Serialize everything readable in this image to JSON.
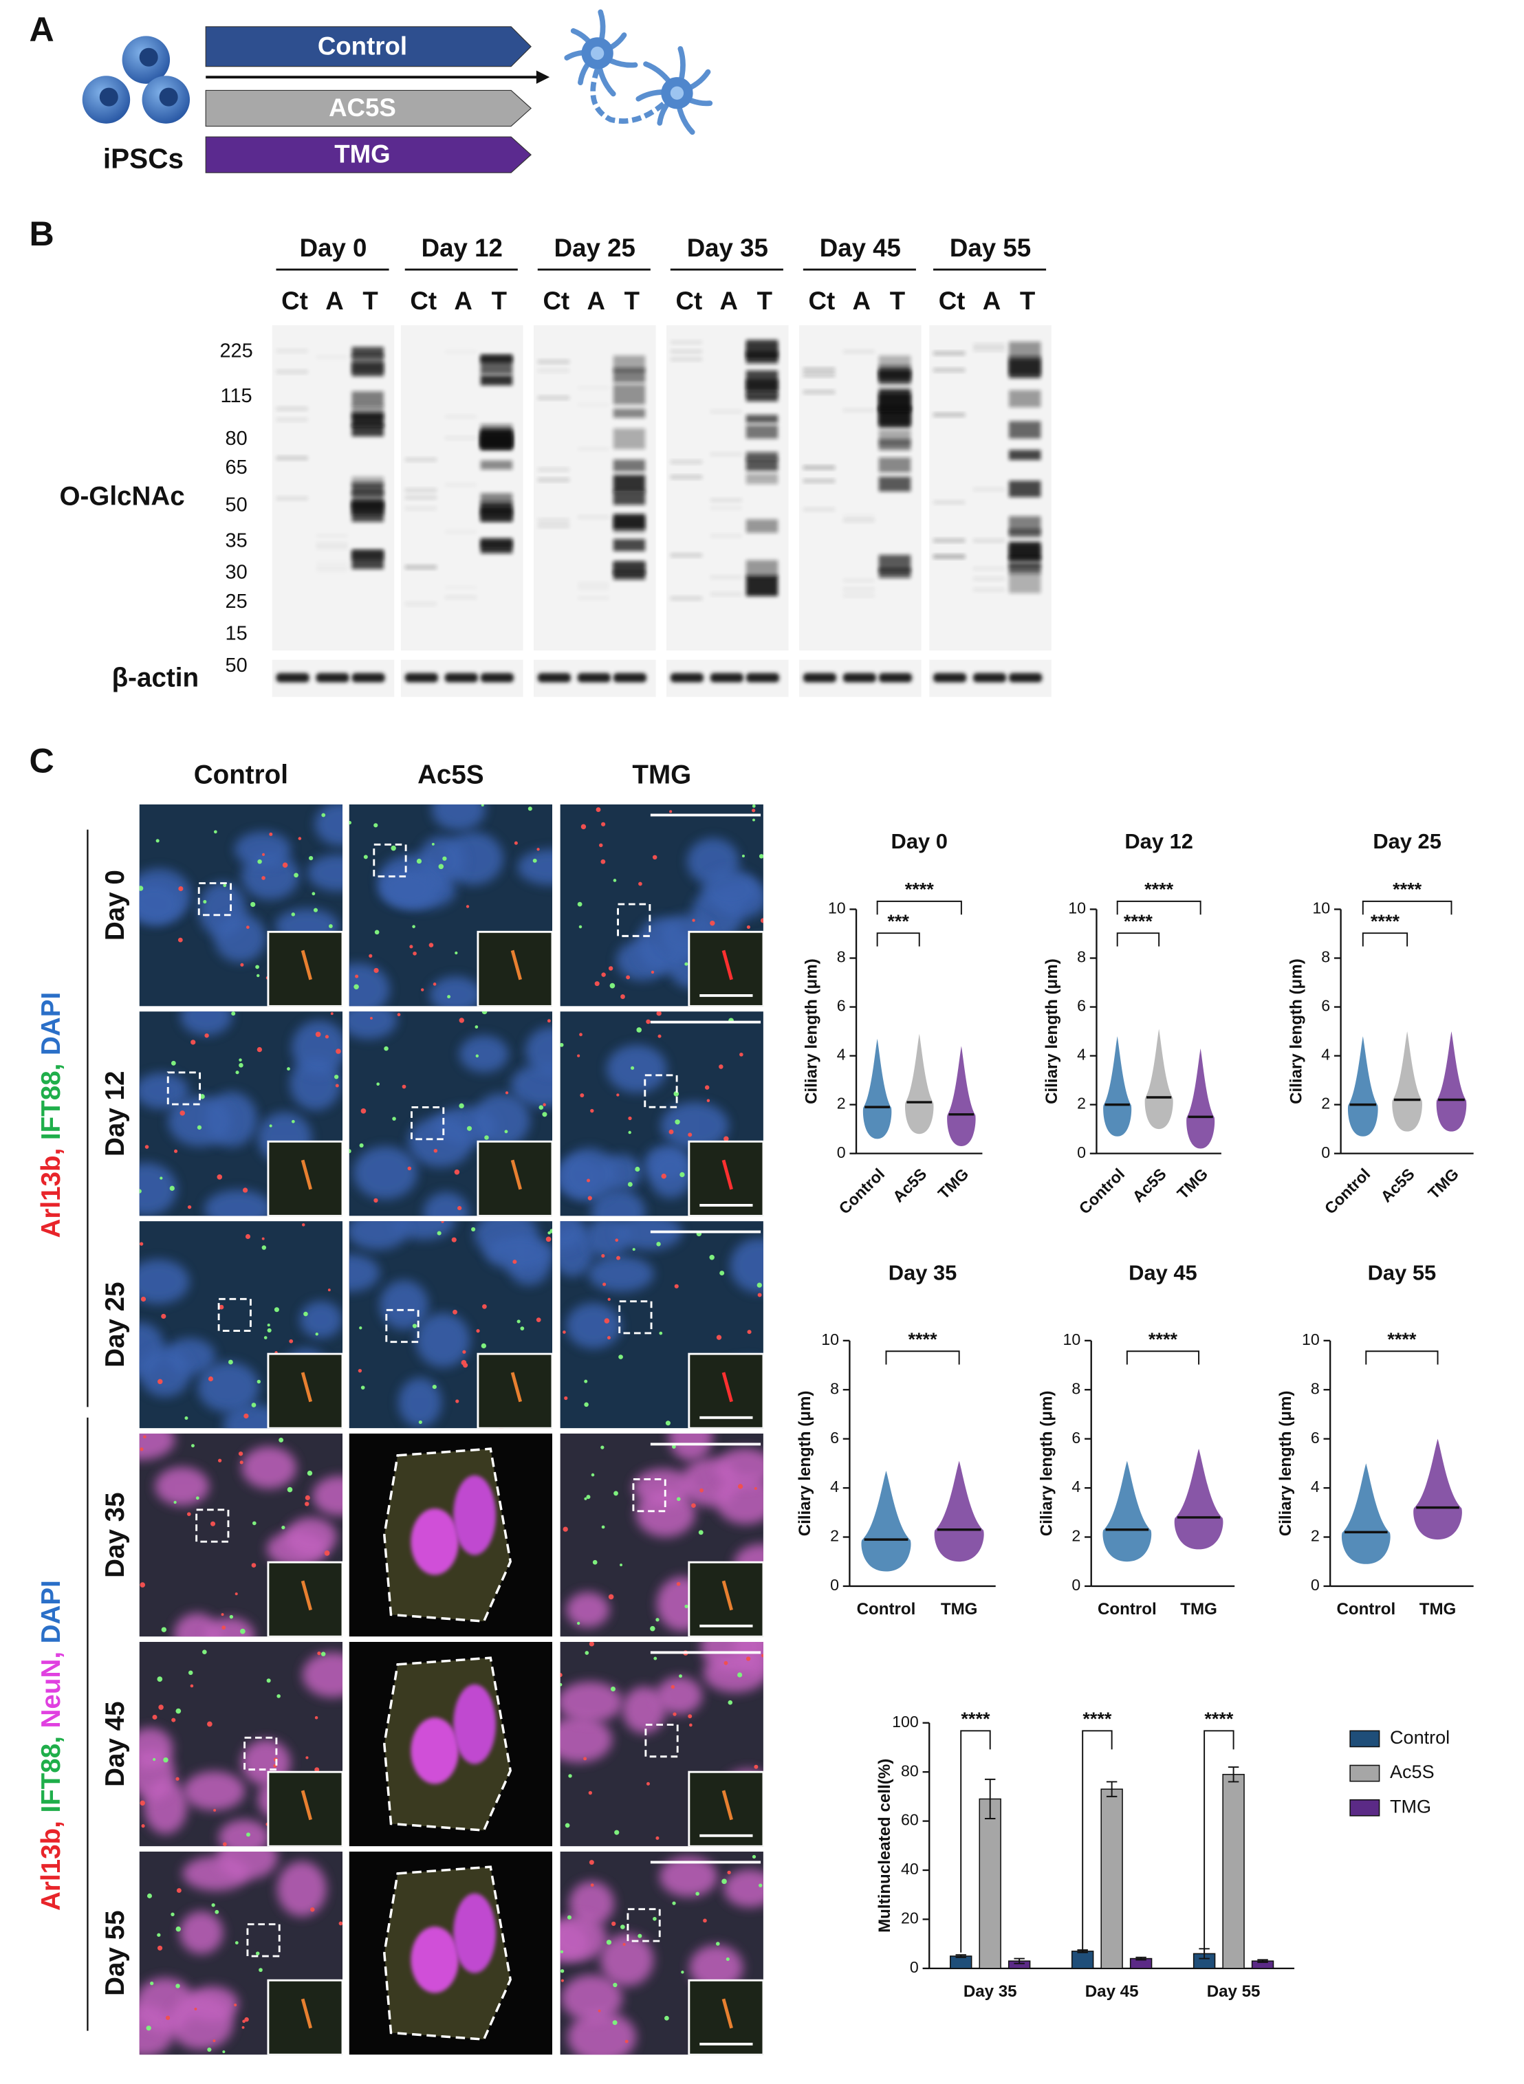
{
  "panel_a": {
    "label": "A",
    "cells_label": "iPSCs",
    "treatments": [
      "Control",
      "AC5S",
      "TMG"
    ],
    "treatment_colors": [
      "#2e4f8f",
      "#a8a8a8",
      "#5b2a8f"
    ]
  },
  "panel_b": {
    "label": "B",
    "days": [
      "Day 0",
      "Day 12",
      "Day 25",
      "Day 35",
      "Day 45",
      "Day 55"
    ],
    "lanes": [
      "Ct",
      "A",
      "T"
    ],
    "blot_label": "O-GlcNAc",
    "markers": [
      "225",
      "115",
      "80",
      "65",
      "50",
      "35",
      "30",
      "25",
      "15"
    ],
    "actin_label": "β-actin",
    "actin_marker": "50"
  },
  "panel_c": {
    "label": "C",
    "columns": [
      "Control",
      "Ac5S",
      "TMG"
    ],
    "rows": [
      "Day 0",
      "Day 12",
      "Day 25",
      "Day 35",
      "Day 45",
      "Day 55"
    ],
    "stain_top": [
      {
        "text": "Arl13b,",
        "color": "#e8242a"
      },
      {
        "text": "IFT88,",
        "color": "#1fae4a"
      },
      {
        "text": "DAPI",
        "color": "#2a6fc8"
      }
    ],
    "stain_bottom": [
      {
        "text": "Arl13b,",
        "color": "#e8242a"
      },
      {
        "text": "IFT88,",
        "color": "#1fae4a"
      },
      {
        "text": "NeuN,",
        "color": "#e040e0"
      },
      {
        "text": "DAPI",
        "color": "#2a6fc8"
      }
    ]
  },
  "chart_data": [
    {
      "type": "strip",
      "title": "Day 0",
      "ylabel": "Ciliary length (μm)",
      "categories": [
        "Control",
        "Ac5S",
        "TMG"
      ],
      "values": [
        1.9,
        2.1,
        1.6
      ],
      "colors": [
        "#2a6fa8",
        "#a9a9a9",
        "#6a2c91"
      ],
      "ylim": [
        0,
        10
      ],
      "yticks": [
        0,
        2,
        4,
        6,
        8,
        10
      ],
      "comparisons": [
        {
          "pair": [
            "Control",
            "Ac5S"
          ],
          "label": "***"
        },
        {
          "pair": [
            "Control",
            "TMG"
          ],
          "label": "****"
        }
      ]
    },
    {
      "type": "strip",
      "title": "Day 12",
      "ylabel": "Ciliary length (μm)",
      "categories": [
        "Control",
        "Ac5S",
        "TMG"
      ],
      "values": [
        2.0,
        2.3,
        1.5
      ],
      "colors": [
        "#2a6fa8",
        "#a9a9a9",
        "#6a2c91"
      ],
      "ylim": [
        0,
        10
      ],
      "yticks": [
        0,
        2,
        4,
        6,
        8,
        10
      ],
      "comparisons": [
        {
          "pair": [
            "Control",
            "Ac5S"
          ],
          "label": "****"
        },
        {
          "pair": [
            "Control",
            "TMG"
          ],
          "label": "****"
        }
      ]
    },
    {
      "type": "strip",
      "title": "Day 25",
      "ylabel": "Ciliary length (μm)",
      "categories": [
        "Control",
        "Ac5S",
        "TMG"
      ],
      "values": [
        2.0,
        2.2,
        2.2
      ],
      "colors": [
        "#2a6fa8",
        "#a9a9a9",
        "#6a2c91"
      ],
      "ylim": [
        0,
        10
      ],
      "yticks": [
        0,
        2,
        4,
        6,
        8,
        10
      ],
      "comparisons": [
        {
          "pair": [
            "Control",
            "Ac5S"
          ],
          "label": "****"
        },
        {
          "pair": [
            "Control",
            "TMG"
          ],
          "label": "****"
        }
      ]
    },
    {
      "type": "strip",
      "title": "Day 35",
      "ylabel": "Ciliary length (μm)",
      "categories": [
        "Control",
        "TMG"
      ],
      "values": [
        1.9,
        2.3
      ],
      "colors": [
        "#2a6fa8",
        "#6a2c91"
      ],
      "ylim": [
        0,
        10
      ],
      "yticks": [
        0,
        2,
        4,
        6,
        8,
        10
      ],
      "comparisons": [
        {
          "pair": [
            "Control",
            "TMG"
          ],
          "label": "****"
        }
      ]
    },
    {
      "type": "strip",
      "title": "Day 45",
      "ylabel": "Ciliary length (μm)",
      "categories": [
        "Control",
        "TMG"
      ],
      "values": [
        2.3,
        2.8
      ],
      "colors": [
        "#2a6fa8",
        "#6a2c91"
      ],
      "ylim": [
        0,
        10
      ],
      "yticks": [
        0,
        2,
        4,
        6,
        8,
        10
      ],
      "comparisons": [
        {
          "pair": [
            "Control",
            "TMG"
          ],
          "label": "****"
        }
      ]
    },
    {
      "type": "strip",
      "title": "Day 55",
      "ylabel": "Ciliary length (μm)",
      "categories": [
        "Control",
        "TMG"
      ],
      "values": [
        2.2,
        3.2
      ],
      "colors": [
        "#2a6fa8",
        "#6a2c91"
      ],
      "ylim": [
        0,
        10
      ],
      "yticks": [
        0,
        2,
        4,
        6,
        8,
        10
      ],
      "comparisons": [
        {
          "pair": [
            "Control",
            "TMG"
          ],
          "label": "****"
        }
      ]
    },
    {
      "type": "bar",
      "ylabel": "Multinucleated cell(%)",
      "categories": [
        "Day 35",
        "Day 45",
        "Day 55"
      ],
      "series": [
        {
          "name": "Control",
          "color": "#1f4e79",
          "values": [
            5,
            7,
            6
          ],
          "errors": [
            0.5,
            0.5,
            2
          ]
        },
        {
          "name": "Ac5S",
          "color": "#a6a6a6",
          "values": [
            69,
            73,
            79
          ],
          "errors": [
            8,
            3,
            3
          ]
        },
        {
          "name": "TMG",
          "color": "#5b2a86",
          "values": [
            3,
            4,
            3
          ],
          "errors": [
            1,
            0.5,
            0.5
          ]
        }
      ],
      "ylim": [
        0,
        100
      ],
      "yticks": [
        0,
        20,
        40,
        60,
        80,
        100
      ],
      "legend": "right",
      "comparisons": [
        {
          "pair": [
            "Control",
            "Ac5S"
          ],
          "label": "****"
        }
      ]
    }
  ]
}
